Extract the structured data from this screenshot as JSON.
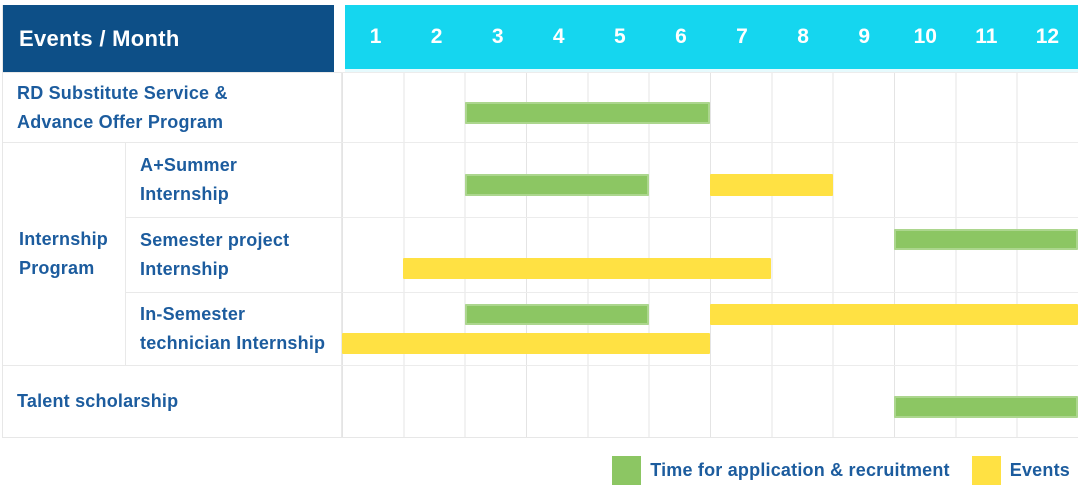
{
  "colors": {
    "navy": "#0d4f87",
    "cyan": "#15d6ef",
    "green": "#8cc663",
    "yellow": "#ffe143",
    "text_blue": "#1c5c9e",
    "grid": "#e4e4e4"
  },
  "chart_data": {
    "type": "table",
    "subtype": "gantt-timeline",
    "header_label": "Events / Month",
    "months": [
      "1",
      "2",
      "3",
      "4",
      "5",
      "6",
      "7",
      "8",
      "9",
      "10",
      "11",
      "12"
    ],
    "x_range": [
      1,
      12
    ],
    "layout": {
      "grid": true,
      "legend_position": "bottom-right"
    },
    "rows": [
      {
        "label": "RD Substitute Service &\nAdvance Offer Program",
        "bars": [
          {
            "color": "green",
            "line": "single",
            "start_month": 3,
            "end_month": 6
          }
        ]
      },
      {
        "group": "Internship\nProgram",
        "label": "A+Summer\nInternship",
        "bars": [
          {
            "color": "green",
            "line": "single",
            "start_month": 3,
            "end_month": 5
          },
          {
            "color": "yellow",
            "line": "single",
            "start_month": 7,
            "end_month": 8
          }
        ]
      },
      {
        "label": "Semester project\nInternship",
        "bars": [
          {
            "color": "green",
            "line": "upper",
            "start_month": 10,
            "end_month": 12
          },
          {
            "color": "yellow",
            "line": "lower",
            "start_month": 2,
            "end_month": 7
          }
        ]
      },
      {
        "label": "In-Semester\ntechnician Internship",
        "bars": [
          {
            "color": "green",
            "line": "upper",
            "start_month": 3,
            "end_month": 5
          },
          {
            "color": "yellow",
            "line": "upper",
            "start_month": 7,
            "end_month": 12
          },
          {
            "color": "yellow",
            "line": "lower",
            "start_month": 1,
            "end_month": 6
          }
        ]
      },
      {
        "label": "Talent scholarship",
        "bars": [
          {
            "color": "green",
            "line": "single",
            "start_month": 10,
            "end_month": 12
          }
        ]
      }
    ],
    "legend": [
      {
        "color": "green",
        "label": "Time for application & recruitment"
      },
      {
        "color": "yellow",
        "label": "Events"
      }
    ]
  }
}
